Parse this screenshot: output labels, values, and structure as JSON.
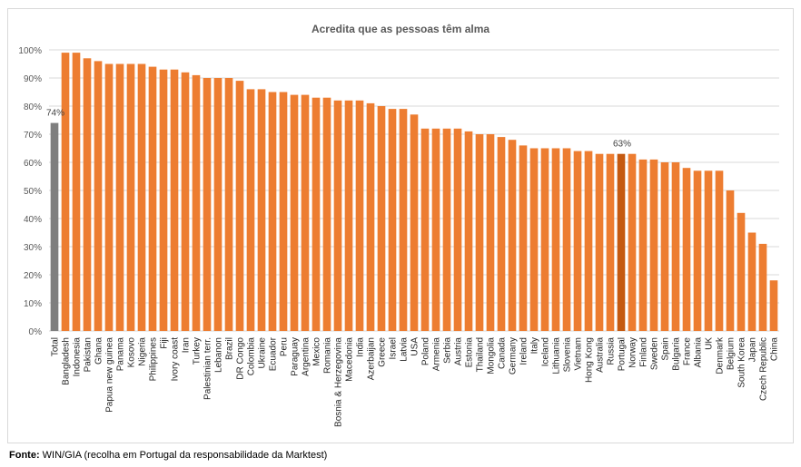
{
  "chart_data": {
    "type": "bar",
    "title": "Acredita que as pessoas têm alma",
    "xlabel": "",
    "ylabel": "",
    "ylim": [
      0,
      100
    ],
    "ytick_labels": [
      "0%",
      "10%",
      "20%",
      "30%",
      "40%",
      "50%",
      "60%",
      "70%",
      "80%",
      "90%",
      "100%"
    ],
    "ytick_values": [
      0,
      10,
      20,
      30,
      40,
      50,
      60,
      70,
      80,
      90,
      100
    ],
    "grid": true,
    "categories": [
      "Total",
      "Bangladesh",
      "Indonesia",
      "Pakistan",
      "Ghana",
      "Papua new guinea",
      "Panama",
      "Kosovo",
      "Nigeria",
      "Philippines",
      "Fiji",
      "Ivory coast",
      "Iran",
      "Turkey",
      "Palestinian terr.",
      "Lebanon",
      "Brazil",
      "DR Congo",
      "Colombia",
      "Ukraine",
      "Ecuador",
      "Peru",
      "Paraguay",
      "Argentina",
      "Mexico",
      "Romania",
      "Bosnia & Herzegovina",
      "Macedonia",
      "India",
      "Azerbaijan",
      "Greece",
      "Israel",
      "Latvia",
      "USA",
      "Poland",
      "Armenia",
      "Serbia",
      "Austria",
      "Estonia",
      "Thailand",
      "Mongolia",
      "Canada",
      "Germany",
      "Ireland",
      "Italy",
      "Iceland",
      "Lithuania",
      "Slovenia",
      "Vietnam",
      "Hong Kong",
      "Australia",
      "Russia",
      "Portugal",
      "Norway",
      "Finland",
      "Sweden",
      "Spain",
      "Bulgaria",
      "France",
      "Albania",
      "UK",
      "Denmark",
      "Belgium",
      "South Korea",
      "Japan",
      "Czech Republic",
      "China"
    ],
    "values": [
      74,
      99,
      99,
      97,
      96,
      95,
      95,
      95,
      95,
      94,
      93,
      93,
      92,
      91,
      90,
      90,
      90,
      89,
      86,
      86,
      85,
      85,
      84,
      84,
      83,
      83,
      82,
      82,
      82,
      81,
      80,
      79,
      79,
      77,
      72,
      72,
      72,
      72,
      71,
      70,
      70,
      69,
      68,
      66,
      65,
      65,
      65,
      65,
      64,
      64,
      63,
      63,
      63,
      63,
      61,
      61,
      60,
      60,
      58,
      57,
      57,
      57,
      50,
      42,
      35,
      31,
      18
    ],
    "data_labels": [
      {
        "category": "Total",
        "text": "74%"
      },
      {
        "category": "Portugal",
        "text": "63%"
      }
    ],
    "colors": {
      "default": "#ed7d31",
      "highlight_total": "#7f7f7f",
      "highlight_portugal": "#c55a11",
      "grid": "#d9d9d9",
      "axis_text": "#595959"
    }
  },
  "source": {
    "label": "Fonte:",
    "text": "WIN/GIA (recolha em Portugal da responsabilidade da Marktest)"
  }
}
